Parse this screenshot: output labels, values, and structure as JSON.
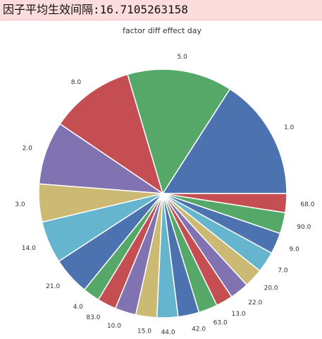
{
  "banner": {
    "text": "因子平均生效间隔:16.7105263158"
  },
  "colors": {
    "palette": [
      "#4c72b0",
      "#55a868",
      "#c44e52",
      "#8172b2",
      "#ccb974",
      "#64b5cd"
    ],
    "banner_bg": "#fcdcdc"
  },
  "chart_data": {
    "type": "pie",
    "title": "factor diff effect day",
    "labels": [
      "1.0",
      "5.0",
      "8.0",
      "2.0",
      "3.0",
      "14.0",
      "21.0",
      "4.0",
      "83.0",
      "10.0",
      "15.0",
      "44.0",
      "42.0",
      "63.0",
      "13.0",
      "22.0",
      "20.0",
      "7.0",
      "9.0",
      "90.0",
      "68.0"
    ],
    "values": [
      29,
      25,
      20,
      15,
      9,
      10,
      9,
      4,
      4.5,
      5,
      5,
      5,
      5,
      4.5,
      4,
      4.5,
      4.5,
      5,
      5,
      5,
      4.5
    ],
    "start_angle_deg": 0,
    "direction": "counterclockwise",
    "legend": "none"
  }
}
